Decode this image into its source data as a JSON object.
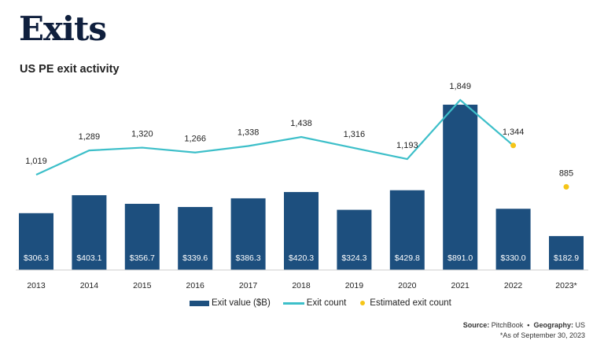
{
  "header": {
    "title": "Exits",
    "subtitle": "US PE exit activity"
  },
  "chart_data": {
    "type": "bar+line",
    "categories": [
      "2013",
      "2014",
      "2015",
      "2016",
      "2017",
      "2018",
      "2019",
      "2020",
      "2021",
      "2022",
      "2023*"
    ],
    "series": [
      {
        "name": "Exit value ($B)",
        "type": "bar",
        "color": "#1d4f7e",
        "values": [
          306.3,
          403.1,
          356.7,
          339.6,
          386.3,
          420.3,
          324.3,
          429.8,
          891.0,
          330.0,
          182.9
        ],
        "labels": [
          "$306.3",
          "$403.1",
          "$356.7",
          "$339.6",
          "$386.3",
          "$420.3",
          "$324.3",
          "$429.8",
          "$891.0",
          "$330.0",
          "$182.9"
        ]
      },
      {
        "name": "Exit count",
        "type": "line",
        "color": "#3dbfc9",
        "values": [
          1019,
          1289,
          1320,
          1266,
          1338,
          1438,
          1316,
          1193,
          1849,
          1344,
          null
        ],
        "labels": [
          "1,019",
          "1,289",
          "1,320",
          "1,266",
          "1,338",
          "1,438",
          "1,316",
          "1,193",
          "1,849",
          "1,344",
          ""
        ]
      },
      {
        "name": "Estimated exit count",
        "type": "scatter",
        "color": "#f5c518",
        "values": [
          null,
          null,
          null,
          null,
          null,
          null,
          null,
          null,
          null,
          1344,
          885
        ],
        "labels": [
          "",
          "",
          "",
          "",
          "",
          "",
          "",
          "",
          "",
          "",
          "885"
        ]
      }
    ],
    "grid": false,
    "legend": "bottom"
  },
  "source": {
    "source_label": "Source:",
    "source_value": "PitchBook",
    "sep": "•",
    "geo_label": "Geography:",
    "geo_value": "US",
    "note": "*As of September 30, 2023"
  }
}
